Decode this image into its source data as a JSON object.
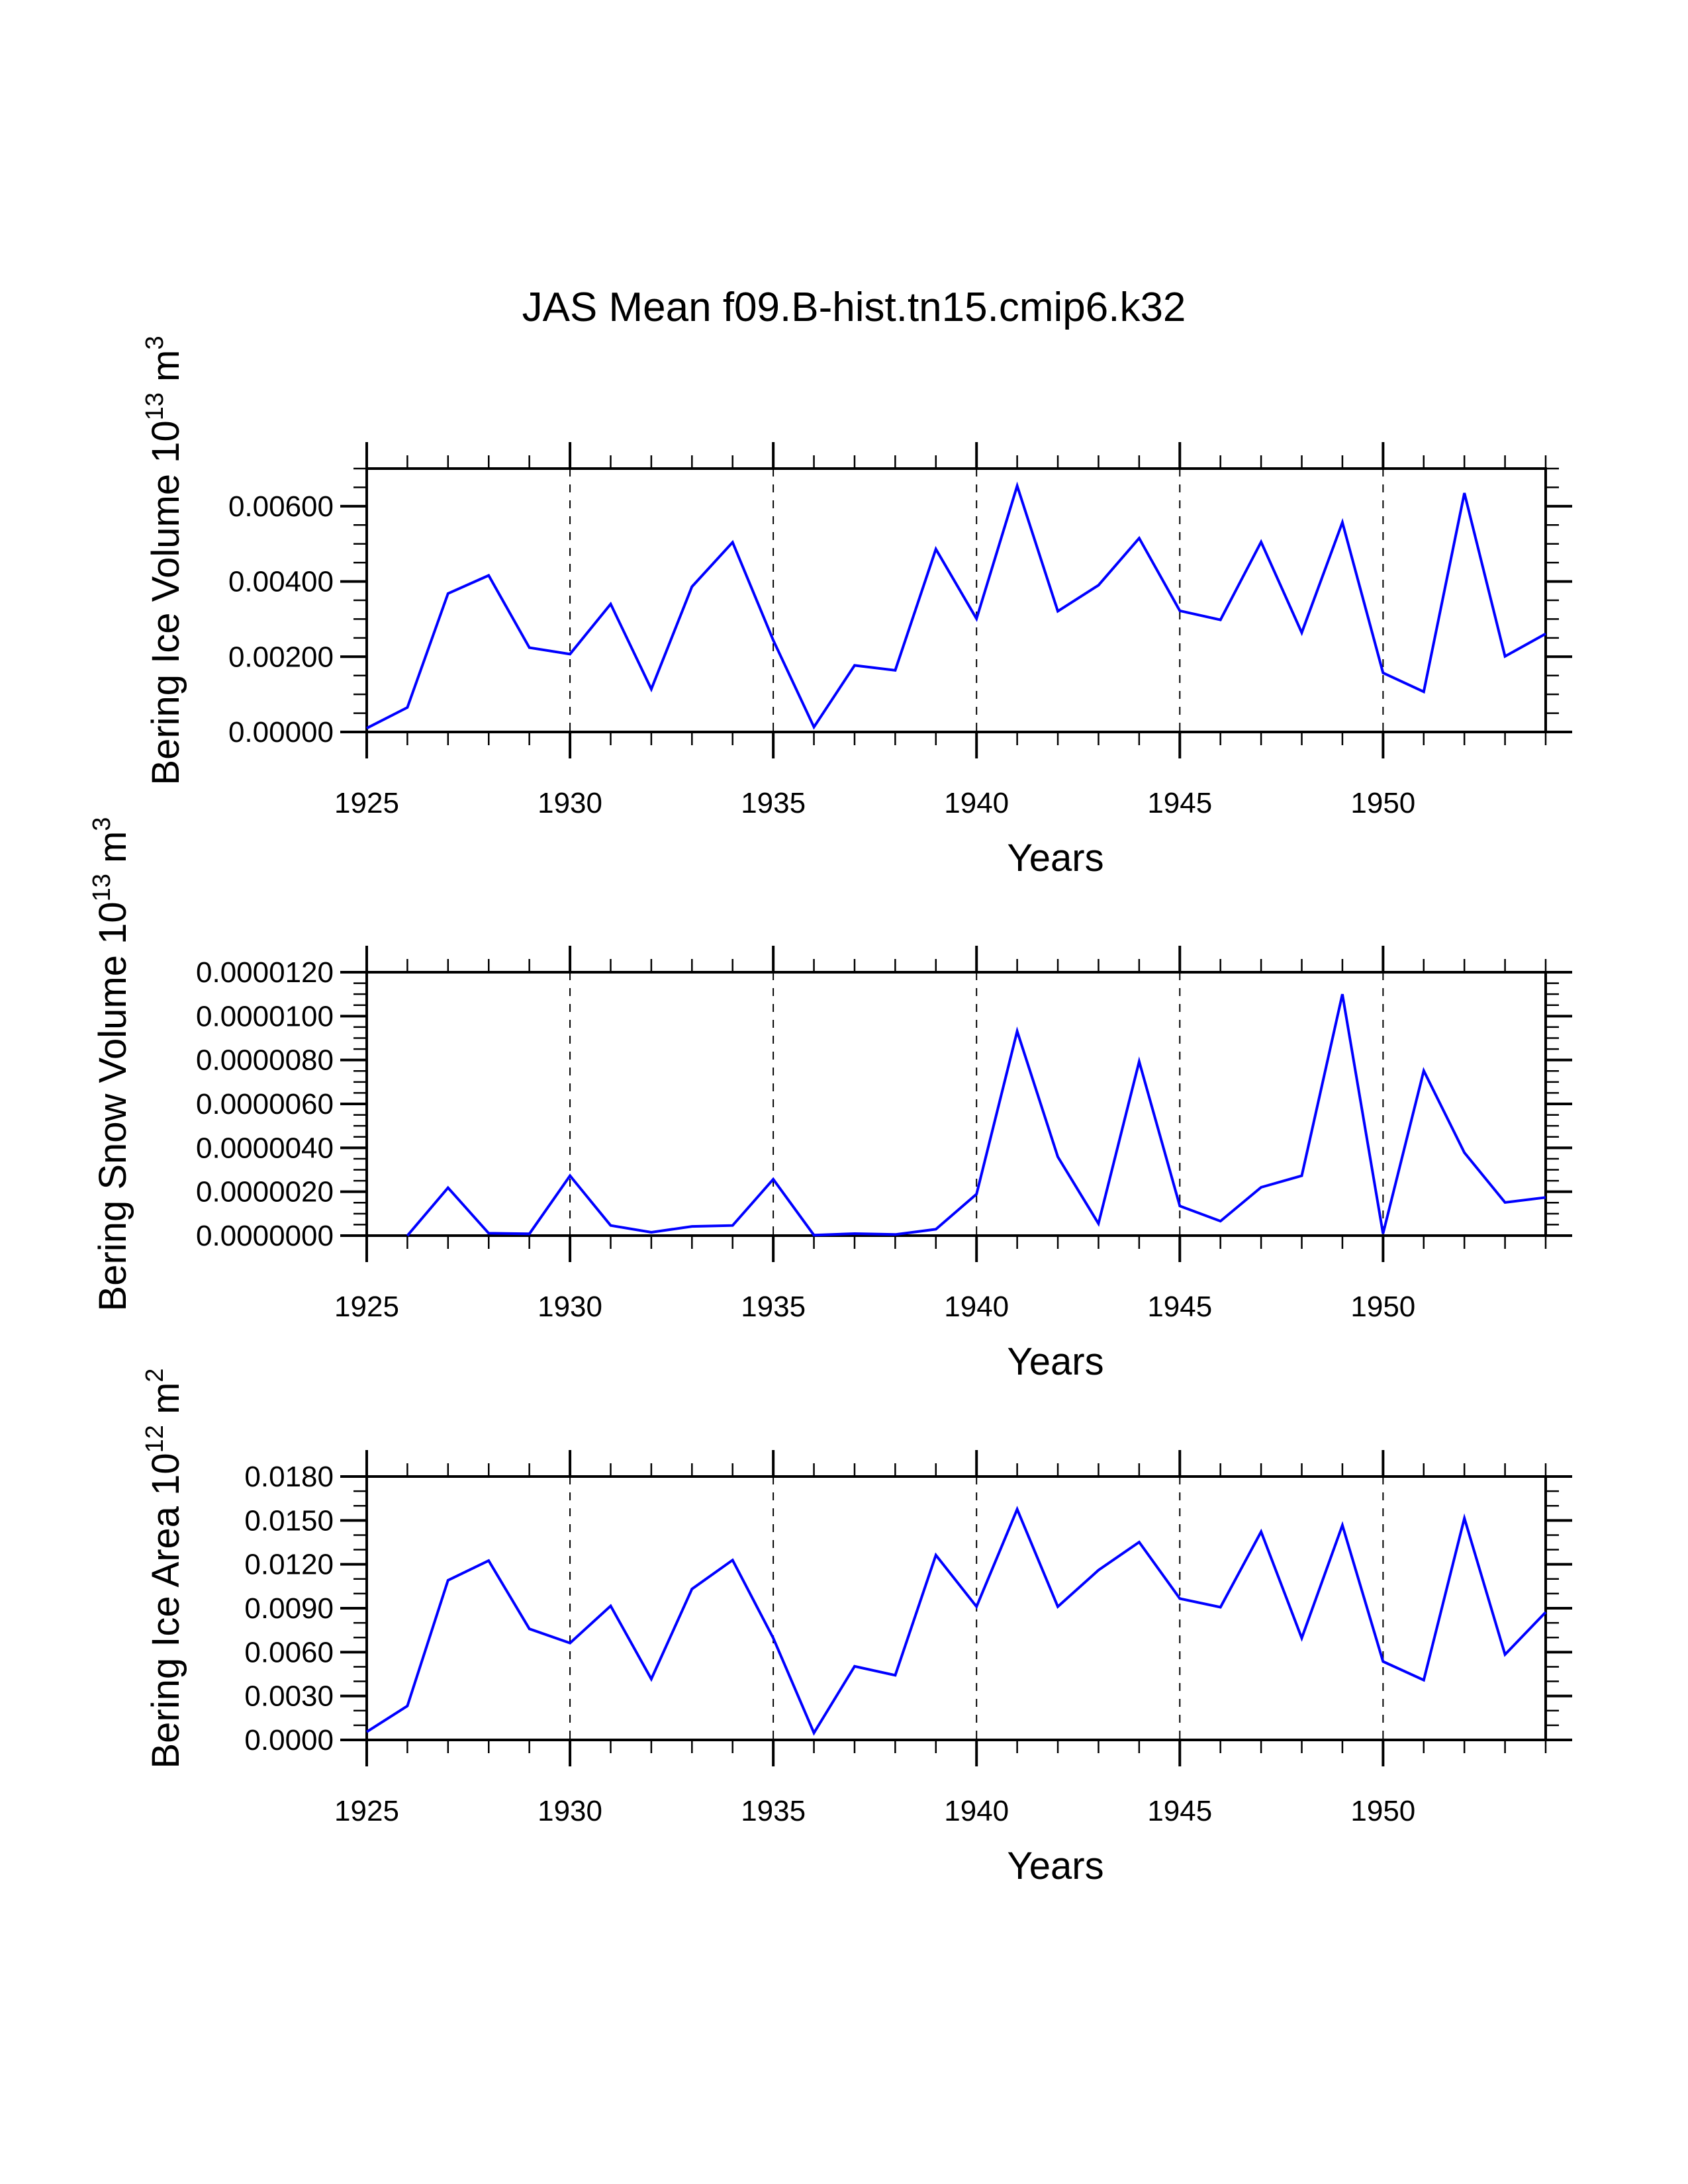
{
  "title": "JAS Mean f09.B-hist.tn15.cmip6.k32",
  "chart_data": [
    {
      "type": "line",
      "name": "bering-ice-volume",
      "ylabel": "Bering Ice Volume 10",
      "ylabel_exp": "13",
      "ylabel_unit": "m",
      "ylabel_unit_exp": "3",
      "xlabel": "Years",
      "xlim": [
        1925,
        1954
      ],
      "ylim": [
        0,
        0.007
      ],
      "yticks": [
        0,
        0.002,
        0.004,
        0.006
      ],
      "ytick_labels": [
        "0.00000",
        "0.00200",
        "0.00400",
        "0.00600"
      ],
      "yminor_step": 0.0005,
      "xticks": [
        1925,
        1930,
        1935,
        1940,
        1945,
        1950
      ],
      "xtick_labels": [
        "1925",
        "1930",
        "1935",
        "1940",
        "1945",
        "1950"
      ],
      "grid": "vertical dashed at major x ticks",
      "series": [
        {
          "name": "Bering Ice Volume",
          "color": "#0000ff",
          "x": [
            1925,
            1926,
            1927,
            1928,
            1929,
            1930,
            1931,
            1932,
            1933,
            1934,
            1935,
            1936,
            1937,
            1938,
            1939,
            1940,
            1941,
            1942,
            1943,
            1944,
            1945,
            1946,
            1947,
            1948,
            1949,
            1950,
            1951,
            1952,
            1953,
            1954
          ],
          "y": [
            0.0001,
            0.00065,
            0.00368,
            0.00416,
            0.00224,
            0.00207,
            0.0034,
            0.00114,
            0.00386,
            0.00504,
            0.00244,
            0.00013,
            0.00177,
            0.00164,
            0.00486,
            0.00301,
            0.00654,
            0.00321,
            0.0039,
            0.00515,
            0.00322,
            0.00298,
            0.00505,
            0.00264,
            0.00557,
            0.00157,
            0.00107,
            0.00635,
            0.00201,
            0.00261
          ]
        }
      ]
    },
    {
      "type": "line",
      "name": "bering-snow-volume",
      "ylabel": "Bering Snow Volume 10",
      "ylabel_exp": "13",
      "ylabel_unit": "m",
      "ylabel_unit_exp": "3",
      "xlabel": "Years",
      "xlim": [
        1925,
        1954
      ],
      "ylim": [
        0,
        1.2e-05
      ],
      "yticks": [
        0,
        2e-06,
        4e-06,
        6e-06,
        8e-06,
        1e-05,
        1.2e-05
      ],
      "ytick_labels": [
        "0.0000000",
        "0.0000020",
        "0.0000040",
        "0.0000060",
        "0.0000080",
        "0.0000100",
        "0.0000120"
      ],
      "yminor_step": 5e-07,
      "xticks": [
        1925,
        1930,
        1935,
        1940,
        1945,
        1950
      ],
      "xtick_labels": [
        "1925",
        "1930",
        "1935",
        "1940",
        "1945",
        "1950"
      ],
      "grid": "vertical dashed at major x ticks",
      "series": [
        {
          "name": "Bering Snow Volume",
          "color": "#0000ff",
          "x": [
            1926,
            1927,
            1928,
            1929,
            1930,
            1931,
            1932,
            1933,
            1934,
            1935,
            1936,
            1937,
            1938,
            1939,
            1940,
            1941,
            1942,
            1943,
            1944,
            1945,
            1946,
            1947,
            1948,
            1949,
            1950,
            1951,
            1952,
            1953,
            1954
          ],
          "y": [
            0.0,
            2.18e-06,
            1.1e-07,
            8e-08,
            2.73e-06,
            4.6e-07,
            1.5e-07,
            4.2e-07,
            4.6e-07,
            2.57e-06,
            2e-08,
            9e-08,
            5e-08,
            2.9e-07,
            1.89e-06,
            9.31e-06,
            3.59e-06,
            5.5e-07,
            7.93e-06,
            1.35e-06,
            6.6e-07,
            2.2e-06,
            2.73e-06,
            1.1e-05,
            9e-08,
            7.51e-06,
            3.78e-06,
            1.51e-06,
            1.74e-06
          ]
        }
      ]
    },
    {
      "type": "line",
      "name": "bering-ice-area",
      "ylabel": "Bering Ice Area 10",
      "ylabel_exp": "12",
      "ylabel_unit": "m",
      "ylabel_unit_exp": "2",
      "xlabel": "Years",
      "xlim": [
        1925,
        1954
      ],
      "ylim": [
        0,
        0.018
      ],
      "yticks": [
        0,
        0.003,
        0.006,
        0.009,
        0.012,
        0.015,
        0.018
      ],
      "ytick_labels": [
        "0.0000",
        "0.0030",
        "0.0060",
        "0.0090",
        "0.0120",
        "0.0150",
        "0.0180"
      ],
      "yminor_step": 0.001,
      "xticks": [
        1925,
        1930,
        1935,
        1940,
        1945,
        1950
      ],
      "xtick_labels": [
        "1925",
        "1930",
        "1935",
        "1940",
        "1945",
        "1950"
      ],
      "grid": "vertical dashed at major x ticks",
      "series": [
        {
          "name": "Bering Ice Area",
          "color": "#0000ff",
          "x": [
            1925,
            1926,
            1927,
            1928,
            1929,
            1930,
            1931,
            1932,
            1933,
            1934,
            1935,
            1936,
            1937,
            1938,
            1939,
            1940,
            1941,
            1942,
            1943,
            1944,
            1945,
            1946,
            1947,
            1948,
            1949,
            1950,
            1951,
            1952,
            1953,
            1954
          ],
          "y": [
            0.00055,
            0.00232,
            0.01091,
            0.01225,
            0.00759,
            0.00662,
            0.00916,
            0.00416,
            0.01031,
            0.01229,
            0.00696,
            0.00048,
            0.00503,
            0.00442,
            0.01263,
            0.00911,
            0.01576,
            0.00911,
            0.0116,
            0.01352,
            0.00966,
            0.00907,
            0.01423,
            0.00696,
            0.01467,
            0.00536,
            0.00409,
            0.01515,
            0.00584,
            0.00873
          ]
        }
      ]
    }
  ]
}
